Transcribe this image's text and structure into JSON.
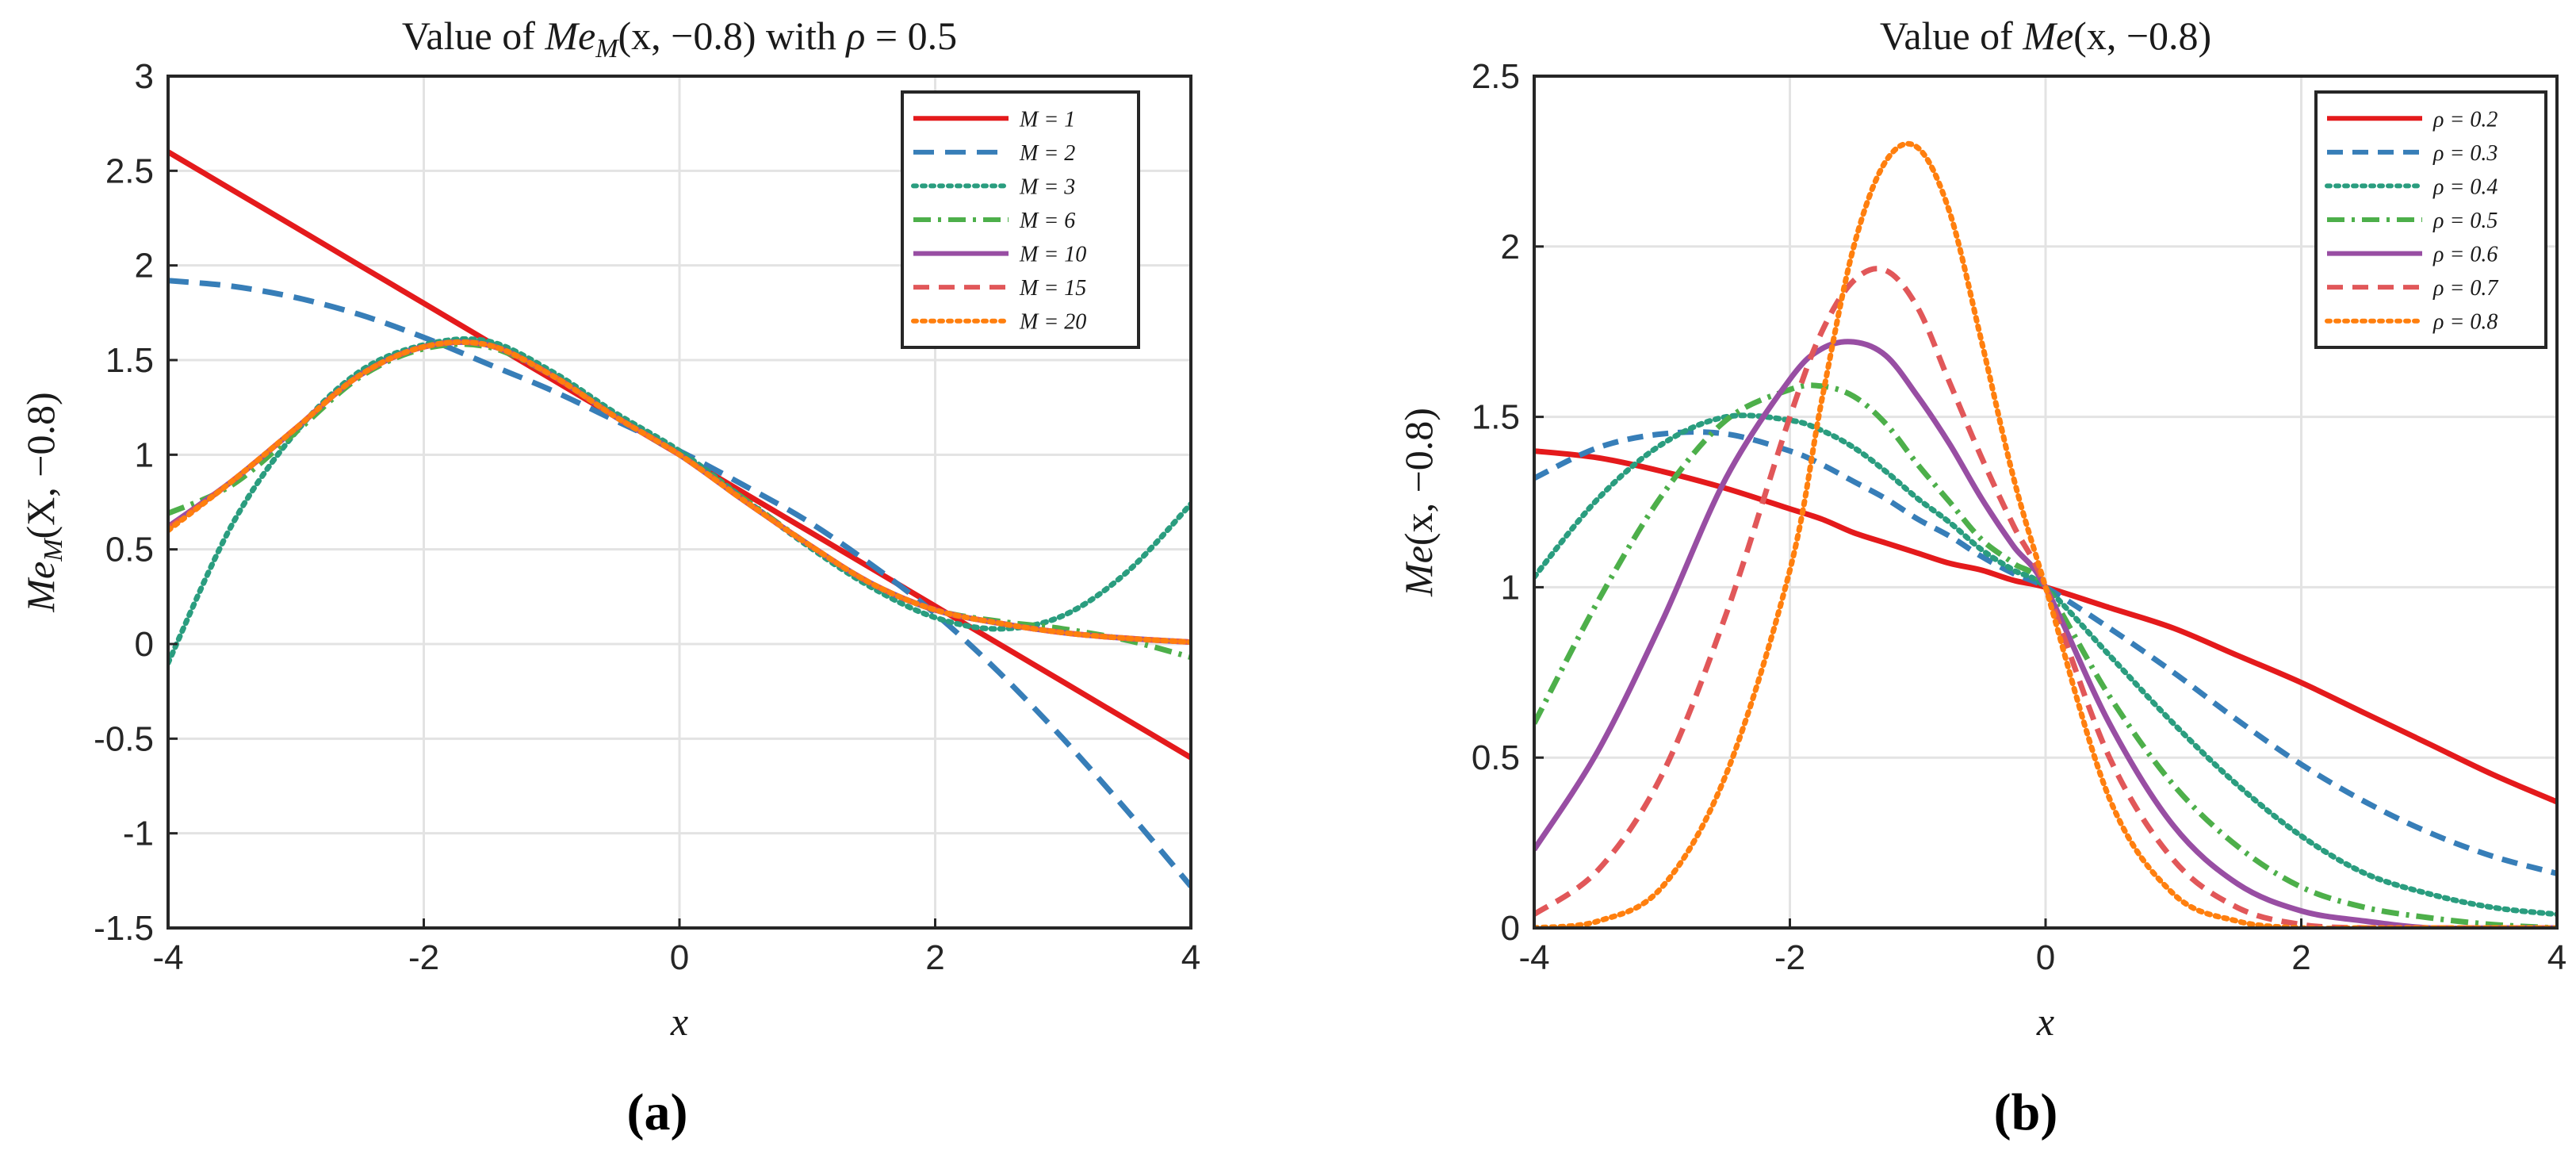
{
  "chart_data": [
    {
      "type": "line",
      "panel": "(a)",
      "title": "Value of Me_M(x, −0.8) with ρ = 0.5",
      "title_parts": {
        "pre": "Value of ",
        "func": "Me",
        "sub": "M",
        "args": "(x, −0.8) with ",
        "rho": "ρ",
        "post": " = 0.5"
      },
      "xlabel": "x",
      "ylabel": "Me_M(X, −0.8)",
      "ylabel_parts": {
        "func": "Me",
        "sub": "M",
        "args": "(X, −0.8)"
      },
      "xlim": [
        -4,
        4
      ],
      "ylim": [
        -1.5,
        3
      ],
      "xticks": [
        -4,
        -2,
        0,
        2,
        4
      ],
      "xtick_labels": [
        "-4",
        "-2",
        "0",
        "2",
        "4"
      ],
      "yticks": [
        -1.5,
        -1,
        -0.5,
        0,
        0.5,
        1,
        1.5,
        2,
        2.5,
        3
      ],
      "ytick_labels": [
        "-1.5",
        "-1",
        "-0.5",
        "0",
        "0.5",
        "1",
        "1.5",
        "2",
        "2.5",
        "3"
      ],
      "grid": true,
      "legend_position": "top-right",
      "x": [
        -4,
        -3.5,
        -3,
        -2.5,
        -2,
        -1.5,
        -1,
        -0.5,
        0,
        0.5,
        1,
        1.5,
        2,
        2.5,
        3,
        3.5,
        4
      ],
      "series": [
        {
          "name": "M = 1",
          "color": "#e41a1c",
          "dash": "solid",
          "values": [
            2.6,
            2.4,
            2.2,
            2.0,
            1.8,
            1.6,
            1.4,
            1.2,
            1.0,
            0.8,
            0.6,
            0.4,
            0.2,
            0.0,
            -0.2,
            -0.4,
            -0.6
          ]
        },
        {
          "name": "M = 2",
          "color": "#377eb8",
          "dash": "long-dash",
          "values": [
            1.92,
            1.89,
            1.83,
            1.74,
            1.62,
            1.48,
            1.34,
            1.18,
            1.02,
            0.84,
            0.65,
            0.42,
            0.16,
            -0.15,
            -0.5,
            -0.88,
            -1.28
          ]
        },
        {
          "name": "M = 3",
          "color": "#2a9d7f",
          "dash": "dot",
          "values": [
            -0.1,
            0.63,
            1.12,
            1.44,
            1.58,
            1.6,
            1.44,
            1.22,
            1.02,
            0.77,
            0.52,
            0.3,
            0.14,
            0.08,
            0.15,
            0.38,
            0.74
          ]
        },
        {
          "name": "M = 6",
          "color": "#4daf4a",
          "dash": "dash-dot",
          "values": [
            0.69,
            0.84,
            1.12,
            1.41,
            1.56,
            1.57,
            1.42,
            1.2,
            1.0,
            0.77,
            0.53,
            0.32,
            0.18,
            0.12,
            0.08,
            0.02,
            -0.07
          ]
        },
        {
          "name": "M = 10",
          "color": "#984ea3",
          "dash": "solid",
          "values": [
            0.62,
            0.86,
            1.14,
            1.42,
            1.57,
            1.58,
            1.42,
            1.2,
            1.0,
            0.76,
            0.53,
            0.32,
            0.18,
            0.11,
            0.06,
            0.03,
            0.01
          ]
        },
        {
          "name": "M = 15",
          "color": "#e15759",
          "dash": "dash",
          "values": [
            0.61,
            0.86,
            1.14,
            1.42,
            1.57,
            1.58,
            1.42,
            1.2,
            1.0,
            0.76,
            0.53,
            0.32,
            0.18,
            0.11,
            0.06,
            0.03,
            0.01
          ]
        },
        {
          "name": "M = 20",
          "color": "#ff7f0e",
          "dash": "dot",
          "values": [
            0.6,
            0.86,
            1.14,
            1.42,
            1.57,
            1.58,
            1.42,
            1.2,
            1.0,
            0.76,
            0.53,
            0.32,
            0.18,
            0.11,
            0.06,
            0.03,
            0.01
          ]
        }
      ]
    },
    {
      "type": "line",
      "panel": "(b)",
      "title": "Value of Me(x, −0.8)",
      "title_parts": {
        "pre": "Value of ",
        "func": "Me",
        "args": "(x, −0.8)"
      },
      "xlabel": "x",
      "ylabel": "Me(x, −0.8)",
      "ylabel_parts": {
        "func": "Me",
        "args": "(x, −0.8)"
      },
      "xlim": [
        -4,
        4
      ],
      "ylim": [
        0,
        2.5
      ],
      "xticks": [
        -4,
        -2,
        0,
        2,
        4
      ],
      "xtick_labels": [
        "-4",
        "-2",
        "0",
        "2",
        "4"
      ],
      "yticks": [
        0,
        0.5,
        1,
        1.5,
        2,
        2.5
      ],
      "ytick_labels": [
        "0",
        "0.5",
        "1",
        "1.5",
        "2",
        "2.5"
      ],
      "grid": true,
      "legend_position": "top-right",
      "x": [
        -4,
        -3.5,
        -3,
        -2.5,
        -2,
        -1.75,
        -1.5,
        -1.25,
        -1,
        -0.75,
        -0.5,
        -0.25,
        0,
        0.5,
        1,
        1.5,
        2,
        2.5,
        3,
        3.5,
        4
      ],
      "series": [
        {
          "name": "ρ = 0.2",
          "color": "#e41a1c",
          "dash": "solid",
          "values": [
            1.4,
            1.38,
            1.34,
            1.29,
            1.23,
            1.2,
            1.16,
            1.13,
            1.1,
            1.07,
            1.05,
            1.02,
            1.0,
            0.94,
            0.88,
            0.8,
            0.72,
            0.63,
            0.54,
            0.45,
            0.37
          ]
        },
        {
          "name": "ρ = 0.3",
          "color": "#377eb8",
          "dash": "dash",
          "values": [
            1.32,
            1.41,
            1.45,
            1.45,
            1.4,
            1.36,
            1.31,
            1.26,
            1.2,
            1.15,
            1.09,
            1.04,
            1.0,
            0.88,
            0.75,
            0.61,
            0.48,
            0.37,
            0.28,
            0.21,
            0.16
          ]
        },
        {
          "name": "ρ = 0.4",
          "color": "#2a9d7f",
          "dash": "dot",
          "values": [
            1.03,
            1.26,
            1.42,
            1.5,
            1.49,
            1.46,
            1.41,
            1.34,
            1.26,
            1.19,
            1.11,
            1.05,
            1.0,
            0.8,
            0.6,
            0.42,
            0.27,
            0.16,
            0.1,
            0.06,
            0.04
          ]
        },
        {
          "name": "ρ = 0.5",
          "color": "#4daf4a",
          "dash": "dash-dot",
          "values": [
            0.6,
            0.96,
            1.27,
            1.49,
            1.58,
            1.59,
            1.56,
            1.48,
            1.36,
            1.25,
            1.14,
            1.07,
            1.0,
            0.68,
            0.42,
            0.24,
            0.12,
            0.06,
            0.03,
            0.01,
            0.0
          ]
        },
        {
          "name": "ρ = 0.6",
          "color": "#984ea3",
          "dash": "solid",
          "values": [
            0.23,
            0.52,
            0.9,
            1.32,
            1.61,
            1.7,
            1.72,
            1.68,
            1.56,
            1.42,
            1.26,
            1.12,
            1.0,
            0.6,
            0.3,
            0.13,
            0.05,
            0.02,
            0.0,
            0.0,
            0.0
          ]
        },
        {
          "name": "ρ = 0.7",
          "color": "#e15759",
          "dash": "dash",
          "values": [
            0.04,
            0.17,
            0.45,
            0.92,
            1.5,
            1.75,
            1.9,
            1.93,
            1.82,
            1.6,
            1.38,
            1.18,
            1.0,
            0.5,
            0.2,
            0.06,
            0.01,
            0.0,
            0.0,
            0.0,
            0.0
          ]
        },
        {
          "name": "ρ = 0.8",
          "color": "#ff7f0e",
          "dash": "dot",
          "values": [
            0.0,
            0.02,
            0.12,
            0.45,
            1.05,
            1.55,
            2.0,
            2.25,
            2.29,
            2.1,
            1.72,
            1.32,
            1.0,
            0.38,
            0.1,
            0.02,
            0.0,
            0.0,
            0.0,
            0.0,
            0.0
          ]
        }
      ]
    }
  ],
  "subfigure_labels": [
    "(a)",
    "(b)"
  ]
}
